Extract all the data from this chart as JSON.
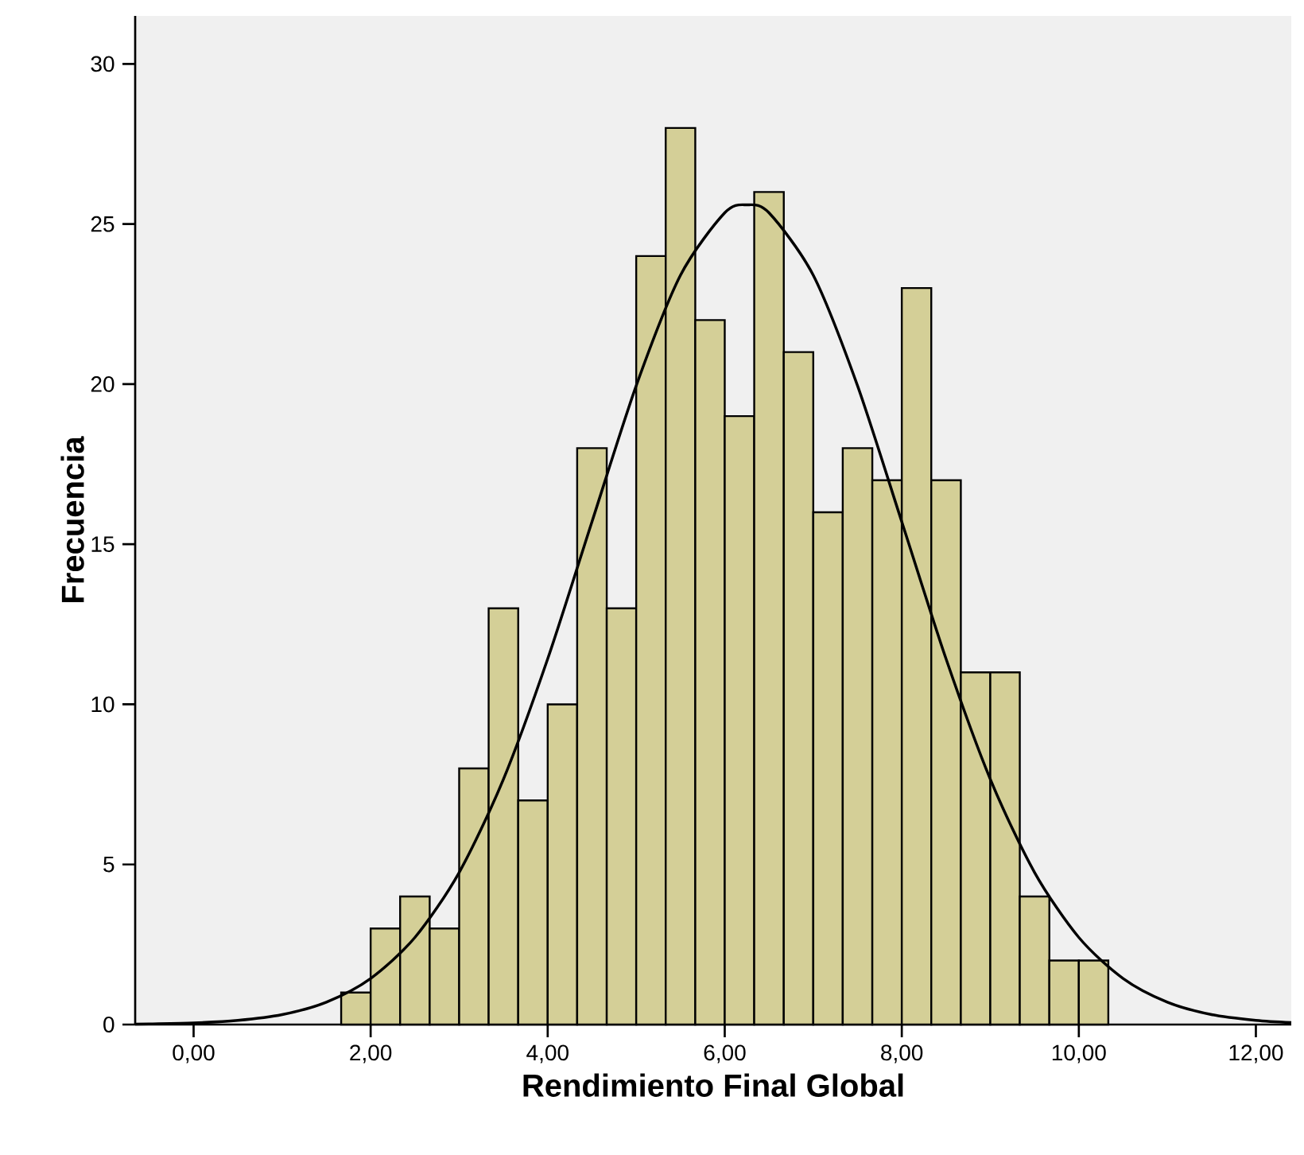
{
  "chart_data": {
    "type": "histogram",
    "xlabel": "Rendimiento Final Global",
    "ylabel": "Frecuencia",
    "color": "#d4cf97",
    "bins": [
      1.667,
      2,
      2.333,
      2.667,
      3,
      3.333,
      3.667,
      4,
      4.333,
      4.667,
      5,
      5.333,
      5.667,
      6,
      6.333,
      6.667,
      7,
      7.333,
      7.667,
      8,
      8.333,
      8.667,
      9,
      9.333,
      9.667,
      10,
      10.333
    ],
    "values": [
      1,
      3,
      4,
      3,
      8,
      13,
      7,
      10,
      18,
      13,
      24,
      28,
      22,
      19,
      26,
      21,
      16,
      18,
      17,
      23,
      17,
      11,
      11,
      4,
      2,
      2
    ],
    "series": [
      {
        "type": "line",
        "color": "#000000",
        "x": [
          -0.66,
          -0.5,
          0,
          0.5,
          1,
          1.5,
          2,
          2.5,
          3,
          3.5,
          4,
          4.5,
          5,
          5.5,
          6,
          6.25,
          6.5,
          7,
          7.5,
          8,
          8.5,
          9,
          9.5,
          10,
          10.5,
          11,
          11.5,
          12,
          12.4
        ],
        "values": [
          0.01,
          0.02,
          0.05,
          0.13,
          0.31,
          0.7,
          1.44,
          2.72,
          4.75,
          7.66,
          11.42,
          15.7,
          19.95,
          23.4,
          25.35,
          25.6,
          25.35,
          23.4,
          19.95,
          15.7,
          11.42,
          7.66,
          4.75,
          2.72,
          1.44,
          0.7,
          0.31,
          0.13,
          0.06
        ]
      }
    ],
    "xlim": [
      -0.66,
      12.4
    ],
    "ylim": [
      0,
      31.5
    ],
    "xticks": [
      {
        "value": 0,
        "label": "0,00"
      },
      {
        "value": 2,
        "label": "2,00"
      },
      {
        "value": 4,
        "label": "4,00"
      },
      {
        "value": 6,
        "label": "6,00"
      },
      {
        "value": 8,
        "label": "8,00"
      },
      {
        "value": 10,
        "label": "10,00"
      },
      {
        "value": 12,
        "label": "12,00"
      }
    ],
    "yticks": [
      0,
      5,
      10,
      15,
      20,
      25,
      30
    ],
    "grid": false
  }
}
